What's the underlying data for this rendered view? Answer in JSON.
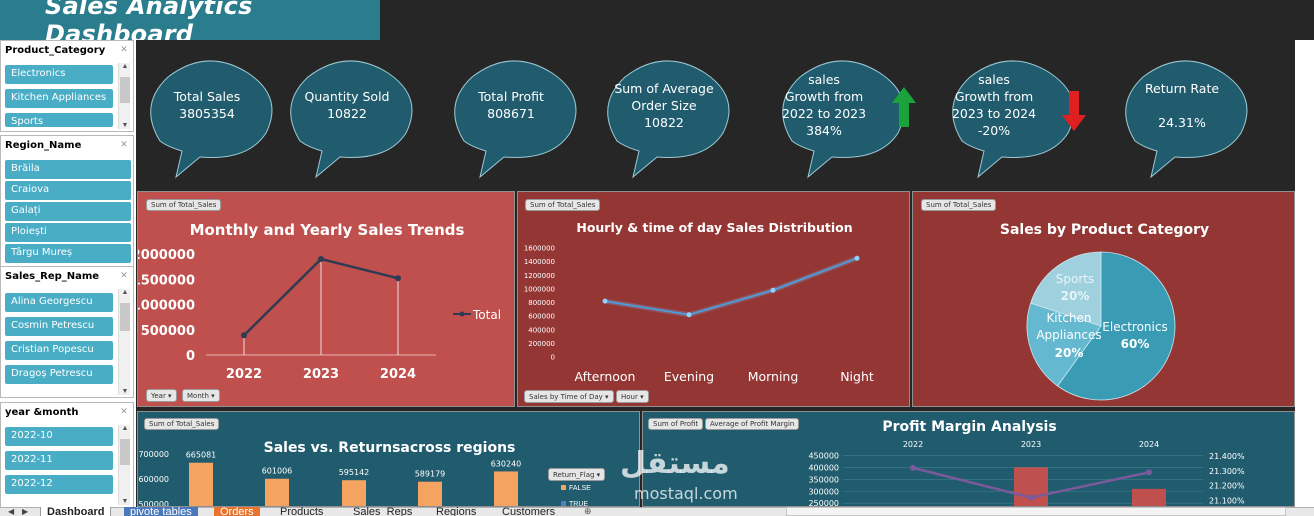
{
  "title": "Sales Analytics Dashboard",
  "slicers": [
    {
      "name": "Product_Category",
      "items": [
        "Electronics",
        "Kitchen Appliances",
        "Sports"
      ]
    },
    {
      "name": "Region_Name",
      "items": [
        "Brăila",
        "Craiova",
        "Galați",
        "Ploiești",
        "Târgu Mureș"
      ]
    },
    {
      "name": "Sales_Rep_Name",
      "items": [
        "Alina Georgescu",
        "Cosmin Petrescu",
        "Cristian Popescu",
        "Dragoș Petrescu"
      ]
    },
    {
      "name": "year &month",
      "items": [
        "2022-10",
        "2022-11",
        "2022-12"
      ]
    }
  ],
  "kpis": [
    {
      "lines": [
        "Total Sales",
        "3805354"
      ]
    },
    {
      "lines": [
        "Quantity Sold",
        "10822"
      ]
    },
    {
      "lines": [
        "Total Profit",
        "808671"
      ]
    },
    {
      "lines": [
        "Sum of  Average",
        "Order Size",
        "10822"
      ]
    },
    {
      "lines": [
        "sales",
        "Growth from",
        "2022 to 2023",
        "384%"
      ],
      "arrow": "up",
      "arrow_color": "#1aa33a"
    },
    {
      "lines": [
        "sales",
        "Growth from",
        "2023 to 2024",
        "-20%"
      ],
      "arrow": "down",
      "arrow_color": "#e02020"
    },
    {
      "lines": [
        "Return Rate",
        "",
        "24.31%"
      ]
    }
  ],
  "panels": {
    "monthly": {
      "tag": "Sum of Total_Sales",
      "title": "Monthly and Yearly Sales Trends",
      "legend": "Total",
      "filters": [
        "Year",
        "Month"
      ]
    },
    "hourly": {
      "tag": "Sum of Total_Sales",
      "title": "Hourly  & time of day Sales Distribution",
      "filters": [
        "Sales by Time of Day",
        "Hour"
      ]
    },
    "category": {
      "tag": "Sum of Total_Sales",
      "title": "Sales by Product Category"
    },
    "returns": {
      "tag": "Sum of Total_Sales",
      "title": "Sales vs. Returnsacross regions",
      "legend_tag": "Return_Flag",
      "legend_items": [
        "FALSE",
        "TRUE"
      ]
    },
    "profit": {
      "tags": [
        "Sum of Profit",
        "Average of Profit Margin"
      ],
      "title": "Profit Margin Analysis"
    }
  },
  "chart_data": [
    {
      "type": "line",
      "title": "Monthly and Yearly Sales Trends",
      "categories": [
        "2022",
        "2023",
        "2024"
      ],
      "series": [
        {
          "name": "Total",
          "values": [
            390000,
            1900000,
            1520000
          ]
        }
      ],
      "yticks": [
        "2000000",
        "1500000",
        "1000000",
        "500000",
        "0"
      ],
      "ylim": [
        0,
        2000000
      ],
      "colors": {
        "line": "#2f3b52"
      }
    },
    {
      "type": "line",
      "title": "Hourly  & time of day Sales Distribution",
      "categories": [
        "Afternoon",
        "Evening",
        "Morning",
        "Night"
      ],
      "series": [
        {
          "values": [
            820000,
            620000,
            980000,
            1450000
          ]
        }
      ],
      "yticks": [
        "1600000",
        "1400000",
        "1200000",
        "1000000",
        "800000",
        "600000",
        "400000",
        "200000",
        "0"
      ],
      "ylim": [
        0,
        1600000
      ],
      "colors": {
        "line": "#4a9fe0"
      }
    },
    {
      "type": "pie",
      "title": "Sales by Product Category",
      "slices": [
        {
          "label": "Electronics",
          "pct": "60%",
          "value": 60,
          "color": "#3a9bb5"
        },
        {
          "label": "Kitchen Appliances",
          "pct": "20%",
          "value": 20,
          "color": "#64b8cf"
        },
        {
          "label": "Sports",
          "pct": "20%",
          "value": 20,
          "color": "#9fd0de"
        }
      ]
    },
    {
      "type": "bar",
      "title": "Sales vs. Returnsacross regions",
      "values": [
        665081,
        601006,
        595142,
        589179,
        630240
      ],
      "yticks": [
        "700000",
        "600000",
        "500000"
      ],
      "ylim": [
        480000,
        720000
      ],
      "colors": {
        "bar": "#f4a460"
      }
    },
    {
      "type": "bar",
      "title": "Profit Margin Analysis",
      "categories": [
        "2022",
        "2023",
        "2024"
      ],
      "bar_values": [
        null,
        400000,
        310000
      ],
      "line_values": [
        21.32,
        21.12,
        21.29
      ],
      "yticks": [
        "450000",
        "400000",
        "350000",
        "300000",
        "250000"
      ],
      "y2ticks": [
        "21.400%",
        "21.300%",
        "21.200%",
        "21.100%"
      ],
      "ylim": [
        230000,
        460000
      ],
      "y2lim": [
        21.05,
        21.42
      ],
      "colors": {
        "bar": "#c0504d",
        "line": "#7a5a9a"
      }
    }
  ],
  "watermark": {
    "arabic": "مستقل",
    "latin": "mostaql.com"
  },
  "tabs": [
    "Dashboard",
    "pivote tables",
    "Orders",
    "Products",
    "Sales_Reps",
    "Regions",
    "Customers"
  ]
}
